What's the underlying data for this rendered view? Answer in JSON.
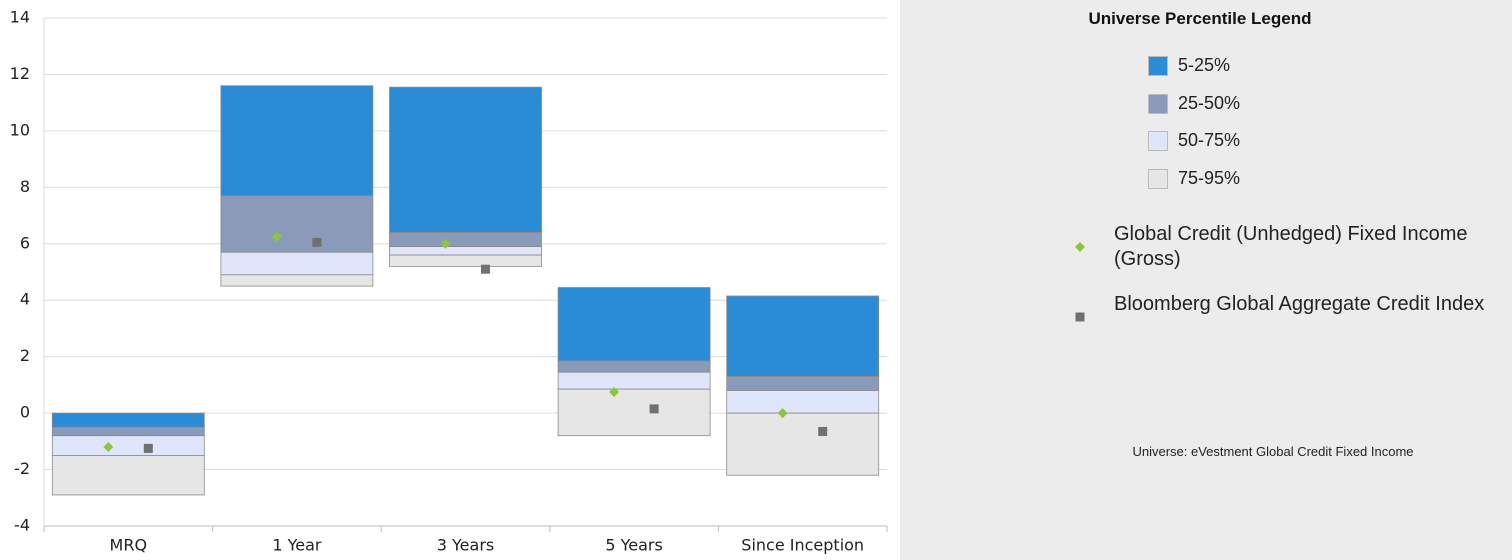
{
  "chart_data": {
    "type": "floating_bar",
    "categories": [
      "MRQ",
      "1 Year",
      "3 Years",
      "5 Years",
      "Since Inception"
    ],
    "ylim": [
      -4,
      14
    ],
    "yticks": [
      -4,
      -2,
      0,
      2,
      4,
      6,
      8,
      10,
      12,
      14
    ],
    "grid": true,
    "legend_title": "Universe Percentile Legend",
    "series": [
      {
        "name": "5-25%",
        "color": "#2a8bd6",
        "ranges": [
          [
            0.0,
            -0.5
          ],
          [
            11.6,
            7.7
          ],
          [
            11.55,
            6.4
          ],
          [
            4.45,
            1.85
          ],
          [
            4.15,
            1.3
          ]
        ]
      },
      {
        "name": "25-50%",
        "color": "#8a9bba",
        "ranges": [
          [
            -0.5,
            -0.8
          ],
          [
            7.7,
            5.7
          ],
          [
            6.4,
            5.9
          ],
          [
            1.85,
            1.45
          ],
          [
            1.3,
            0.8
          ]
        ]
      },
      {
        "name": "50-75%",
        "color": "#dfe5fb",
        "ranges": [
          [
            -0.8,
            -1.5
          ],
          [
            5.7,
            4.9
          ],
          [
            5.9,
            5.6
          ],
          [
            1.45,
            0.85
          ],
          [
            0.8,
            0.0
          ]
        ]
      },
      {
        "name": "75-95%",
        "color": "#e6e6e6",
        "ranges": [
          [
            -1.5,
            -2.9
          ],
          [
            4.9,
            4.5
          ],
          [
            5.6,
            5.2
          ],
          [
            0.85,
            -0.8
          ],
          [
            0.0,
            -2.2
          ]
        ]
      }
    ],
    "markers": [
      {
        "name": "Global Credit (Unhedged) Fixed Income (Gross)",
        "color": "#8cc63f",
        "shape": "diamond",
        "values": [
          -1.2,
          6.25,
          6.0,
          0.75,
          0.0
        ]
      },
      {
        "name": "Bloomberg Global Aggregate Credit Index",
        "color": "#707070",
        "shape": "square",
        "values": [
          -1.25,
          6.05,
          5.1,
          0.15,
          -0.65
        ]
      }
    ],
    "note": "Universe: eVestment Global Credit Fixed Income"
  }
}
